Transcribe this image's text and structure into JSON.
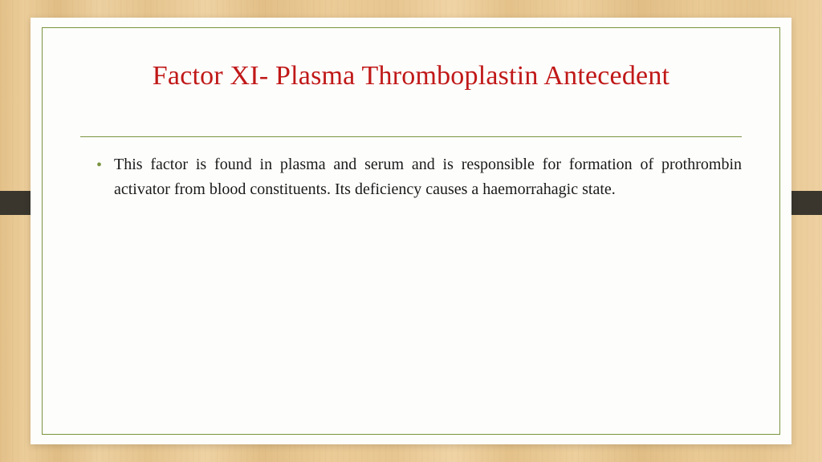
{
  "slide": {
    "title": "Factor XI- Plasma Thromboplastin Antecedent",
    "title_color": "#c01818",
    "border_color": "#7a9440",
    "bullet_color": "#7a9440",
    "paper_bg": "#fdfdfb",
    "body_text_color": "#1a1a1a",
    "title_fontsize": 34,
    "body_fontsize": 20,
    "bullets": [
      "This factor is found in plasma and serum and is responsible for formation of prothrombin activator from blood constituents. Its deficiency causes a haemorrahagic state."
    ]
  },
  "decor": {
    "dark_bar_color": "#3a362e",
    "wood_base": "#e8c893"
  }
}
